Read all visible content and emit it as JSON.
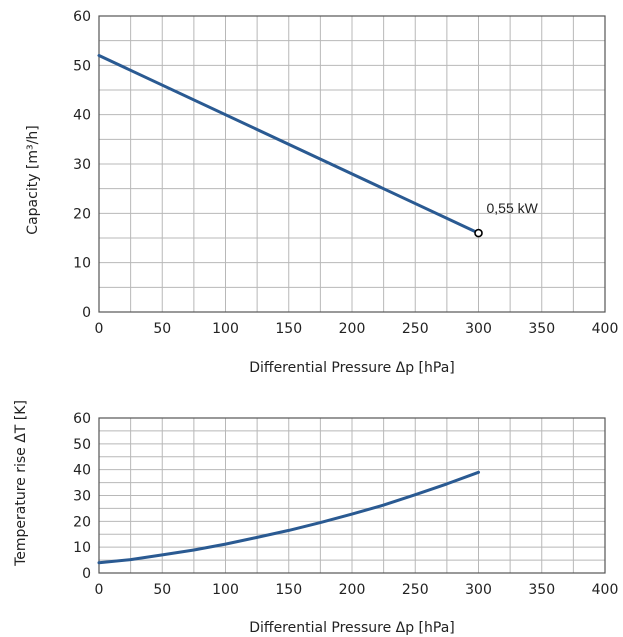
{
  "chart_data": [
    {
      "type": "line",
      "xlabel": "Differential Pressure Δp [hPa]",
      "ylabel": "Capacity [m³/h]",
      "xlim": [
        0,
        400
      ],
      "ylim": [
        0,
        60
      ],
      "xticks": [
        "0",
        "50",
        "100",
        "150",
        "200",
        "250",
        "300",
        "350",
        "400"
      ],
      "yticks": [
        "0",
        "10",
        "20",
        "30",
        "40",
        "50",
        "60"
      ],
      "grid": true,
      "color": "#2a5a92",
      "series": [
        {
          "x": [
            0,
            300
          ],
          "y": [
            52,
            16
          ]
        }
      ],
      "annotations": [
        {
          "text": "0,55 kW",
          "x": 300,
          "y": 16,
          "marker": "open-circle"
        }
      ]
    },
    {
      "type": "line",
      "xlabel": "Differential Pressure Δp [hPa]",
      "ylabel": "Temperature rise  ΔT [K]",
      "xlim": [
        0,
        400
      ],
      "ylim": [
        0,
        60
      ],
      "xticks": [
        "0",
        "50",
        "100",
        "150",
        "200",
        "250",
        "300",
        "350",
        "400"
      ],
      "yticks": [
        "0",
        "10",
        "20",
        "30",
        "40",
        "50",
        "60"
      ],
      "grid": true,
      "color": "#2a5a92",
      "series": [
        {
          "x": [
            0,
            25,
            50,
            75,
            100,
            125,
            150,
            175,
            200,
            225,
            250,
            275,
            300
          ],
          "y": [
            4,
            5.2,
            7,
            8.9,
            11.2,
            13.8,
            16.5,
            19.5,
            22.8,
            26.3,
            30.3,
            34.5,
            39
          ]
        }
      ]
    }
  ]
}
